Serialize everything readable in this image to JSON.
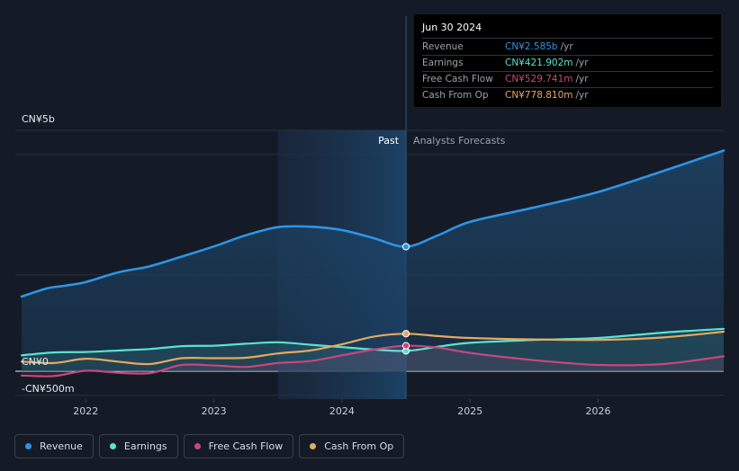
{
  "chart_data": {
    "type": "area",
    "x_range": [
      2021.45,
      2026.98
    ],
    "y_range": [
      -500,
      5000
    ],
    "x_ticks": [
      {
        "value": 2022,
        "label": "2022"
      },
      {
        "value": 2023,
        "label": "2023"
      },
      {
        "value": 2024,
        "label": "2024"
      },
      {
        "value": 2025,
        "label": "2025"
      },
      {
        "value": 2026,
        "label": "2026"
      }
    ],
    "y_axis_labels": [
      {
        "value": 5000,
        "label": "CN¥5b"
      },
      {
        "value": 0,
        "label": "CN¥0"
      },
      {
        "value": -500,
        "label": "-CN¥500m"
      }
    ],
    "gridlines_y": [
      5000,
      4500,
      2000,
      0,
      -500
    ],
    "past_region": {
      "start": 2023.5,
      "end": 2024.5,
      "label": "Past"
    },
    "forecast_label": "Analysts Forecasts",
    "divider_x": 2024.5,
    "series": [
      {
        "name": "Revenue",
        "color": "#2d94e6",
        "fill": true,
        "points": [
          [
            2021.5,
            1550
          ],
          [
            2021.7,
            1720
          ],
          [
            2021.85,
            1780
          ],
          [
            2022.0,
            1850
          ],
          [
            2022.25,
            2050
          ],
          [
            2022.5,
            2180
          ],
          [
            2022.75,
            2380
          ],
          [
            2023.0,
            2590
          ],
          [
            2023.25,
            2820
          ],
          [
            2023.5,
            2990
          ],
          [
            2023.75,
            3000
          ],
          [
            2024.0,
            2930
          ],
          [
            2024.25,
            2760
          ],
          [
            2024.5,
            2585
          ],
          [
            2024.75,
            2820
          ],
          [
            2025.0,
            3100
          ],
          [
            2025.5,
            3400
          ],
          [
            2026.0,
            3720
          ],
          [
            2026.5,
            4150
          ],
          [
            2026.98,
            4580
          ]
        ]
      },
      {
        "name": "Earnings",
        "color": "#5ce1cf",
        "fill": true,
        "points": [
          [
            2021.5,
            330
          ],
          [
            2021.75,
            390
          ],
          [
            2022.0,
            400
          ],
          [
            2022.25,
            430
          ],
          [
            2022.5,
            460
          ],
          [
            2022.75,
            520
          ],
          [
            2023.0,
            530
          ],
          [
            2023.25,
            570
          ],
          [
            2023.5,
            600
          ],
          [
            2023.75,
            550
          ],
          [
            2024.0,
            500
          ],
          [
            2024.25,
            450
          ],
          [
            2024.5,
            421.9
          ],
          [
            2024.75,
            510
          ],
          [
            2025.0,
            590
          ],
          [
            2025.5,
            650
          ],
          [
            2026.0,
            690
          ],
          [
            2026.5,
            800
          ],
          [
            2026.98,
            880
          ]
        ]
      },
      {
        "name": "Free Cash Flow",
        "color": "#c7467e",
        "fill": true,
        "points": [
          [
            2021.5,
            -90
          ],
          [
            2021.75,
            -100
          ],
          [
            2022.0,
            10
          ],
          [
            2022.25,
            -30
          ],
          [
            2022.5,
            -40
          ],
          [
            2022.75,
            130
          ],
          [
            2023.0,
            120
          ],
          [
            2023.25,
            90
          ],
          [
            2023.5,
            170
          ],
          [
            2023.75,
            210
          ],
          [
            2024.0,
            330
          ],
          [
            2024.25,
            450
          ],
          [
            2024.5,
            529.7
          ],
          [
            2024.75,
            490
          ],
          [
            2025.0,
            380
          ],
          [
            2025.5,
            230
          ],
          [
            2026.0,
            130
          ],
          [
            2026.5,
            150
          ],
          [
            2026.98,
            310
          ]
        ]
      },
      {
        "name": "Cash From Op",
        "color": "#e6a95e",
        "fill": false,
        "points": [
          [
            2021.5,
            200
          ],
          [
            2021.75,
            170
          ],
          [
            2022.0,
            260
          ],
          [
            2022.25,
            200
          ],
          [
            2022.5,
            150
          ],
          [
            2022.75,
            270
          ],
          [
            2023.0,
            270
          ],
          [
            2023.25,
            280
          ],
          [
            2023.5,
            370
          ],
          [
            2023.75,
            430
          ],
          [
            2024.0,
            560
          ],
          [
            2024.25,
            720
          ],
          [
            2024.5,
            778.8
          ],
          [
            2024.75,
            730
          ],
          [
            2025.0,
            690
          ],
          [
            2025.5,
            660
          ],
          [
            2026.0,
            650
          ],
          [
            2026.5,
            700
          ],
          [
            2026.98,
            820
          ]
        ]
      }
    ],
    "tooltip": {
      "date": "Jun 30 2024",
      "rows": [
        {
          "label": "Revenue",
          "value": "CN¥2.585b",
          "unit": "/yr",
          "color": "#2d94e6"
        },
        {
          "label": "Earnings",
          "value": "CN¥421.902m",
          "unit": "/yr",
          "color": "#5ce1cf"
        },
        {
          "label": "Free Cash Flow",
          "value": "CN¥529.741m",
          "unit": "/yr",
          "color": "#c7467e"
        },
        {
          "label": "Cash From Op",
          "value": "CN¥778.810m",
          "unit": "/yr",
          "color": "#e6a95e"
        }
      ]
    }
  },
  "legend": [
    {
      "label": "Revenue",
      "color": "#2d94e6"
    },
    {
      "label": "Earnings",
      "color": "#5ce1cf"
    },
    {
      "label": "Free Cash Flow",
      "color": "#c7467e"
    },
    {
      "label": "Cash From Op",
      "color": "#e6a95e"
    }
  ]
}
